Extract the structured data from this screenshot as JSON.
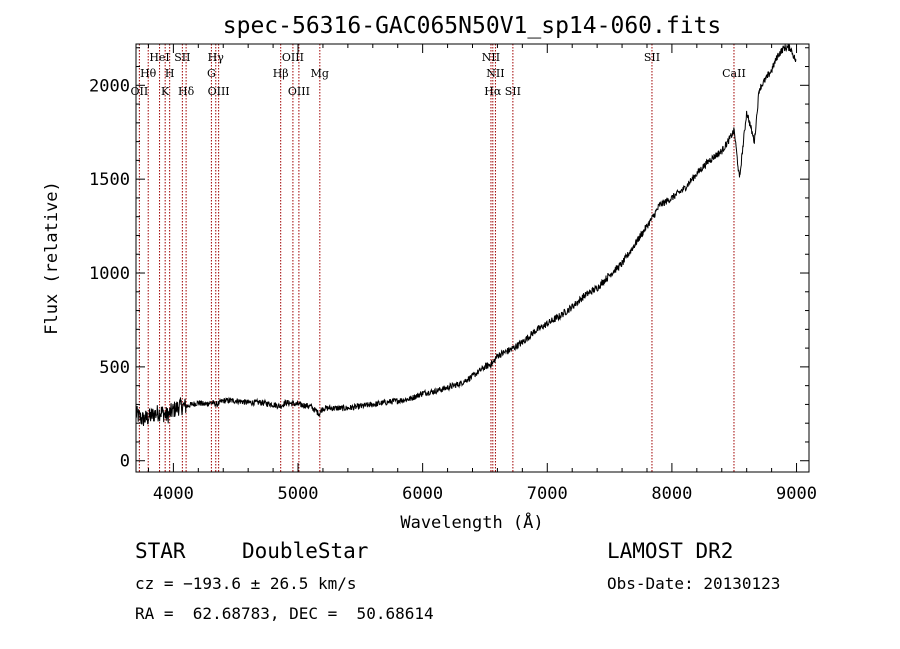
{
  "chart_data": {
    "type": "line",
    "title": "spec-56316-GAC065N50V1_sp14-060.fits",
    "xlabel": "Wavelength (Å)",
    "ylabel": "Flux (relative)",
    "xlim": [
      3700,
      9100
    ],
    "ylim": [
      -60,
      2220
    ],
    "xticks": [
      4000,
      5000,
      6000,
      7000,
      8000,
      9000
    ],
    "yticks": [
      0,
      500,
      1000,
      1500,
      2000
    ],
    "xtick_labels": [
      "4000",
      "5000",
      "6000",
      "7000",
      "8000",
      "9000"
    ],
    "ytick_labels": [
      "0",
      "500",
      "1000",
      "1500",
      "2000"
    ],
    "grid": false,
    "series": [
      {
        "x": [
          3700,
          3750,
          3800,
          3850,
          3900,
          3950,
          4000,
          4050,
          4100,
          4150,
          4200,
          4250,
          4300,
          4350,
          4400,
          4500,
          4600,
          4700,
          4800,
          4860,
          4900,
          5000,
          5100,
          5170,
          5200,
          5300,
          5400,
          5500,
          5600,
          5700,
          5800,
          5900,
          6000,
          6100,
          6200,
          6300,
          6400,
          6500,
          6563,
          6600,
          6700,
          6800,
          6900,
          7000,
          7100,
          7200,
          7300,
          7400,
          7500,
          7600,
          7700,
          7800,
          7850,
          7900,
          8000,
          8100,
          8200,
          8300,
          8400,
          8450,
          8500,
          8542,
          8600,
          8662,
          8700,
          8750,
          8800,
          8850,
          8900,
          8950,
          9000
        ],
        "y": [
          250,
          220,
          230,
          250,
          260,
          240,
          270,
          290,
          290,
          300,
          310,
          300,
          310,
          300,
          320,
          320,
          310,
          310,
          300,
          290,
          310,
          300,
          290,
          250,
          280,
          280,
          280,
          290,
          300,
          310,
          320,
          330,
          360,
          370,
          390,
          410,
          450,
          500,
          520,
          560,
          590,
          630,
          690,
          730,
          770,
          820,
          880,
          920,
          990,
          1050,
          1150,
          1250,
          1300,
          1360,
          1400,
          1450,
          1530,
          1600,
          1650,
          1700,
          1760,
          1500,
          1860,
          1700,
          1980,
          2030,
          2080,
          2160,
          2200,
          2200,
          2120
        ]
      }
    ],
    "spectral_lines": [
      {
        "label": "Hθ",
        "x": 3798,
        "row": 2
      },
      {
        "label": "OII",
        "x": 3727,
        "row": 3
      },
      {
        "label": "HeI",
        "x": 3889,
        "row": 1
      },
      {
        "label": "H",
        "x": 3970,
        "row": 2
      },
      {
        "label": "K",
        "x": 3934,
        "row": 3
      },
      {
        "label": "SII",
        "x": 4072,
        "row": 1
      },
      {
        "label": "Hδ",
        "x": 4102,
        "row": 3
      },
      {
        "label": "Hγ",
        "x": 4340,
        "row": 1
      },
      {
        "label": "G",
        "x": 4305,
        "row": 2
      },
      {
        "label": "OIII",
        "x": 4363,
        "row": 3
      },
      {
        "label": "Hβ",
        "x": 4861,
        "row": 2
      },
      {
        "label": "OIII",
        "x": 4959,
        "row": 1
      },
      {
        "label": "OIII",
        "x": 5007,
        "row": 3
      },
      {
        "label": "Mg",
        "x": 5175,
        "row": 2
      },
      {
        "label": "NII",
        "x": 6548,
        "row": 1
      },
      {
        "label": "NII",
        "x": 6584,
        "row": 2
      },
      {
        "label": "Hα",
        "x": 6563,
        "row": 3
      },
      {
        "label": "SII",
        "x": 6724,
        "row": 3
      },
      {
        "label": "SII",
        "x": 7840,
        "row": 1
      },
      {
        "label": "CaII",
        "x": 8498,
        "row": 2
      }
    ],
    "colors": {
      "spectrum": "#000000",
      "lines": "#a00000"
    }
  },
  "info": {
    "type_label": "STAR",
    "subclass": "DoubleStar",
    "survey": "LAMOST DR2",
    "cz": "cz = −193.6 ± 26.5 km/s",
    "obs_date": "Obs-Date: 20130123",
    "coords": "RA =  62.68783, DEC =  50.68614"
  }
}
